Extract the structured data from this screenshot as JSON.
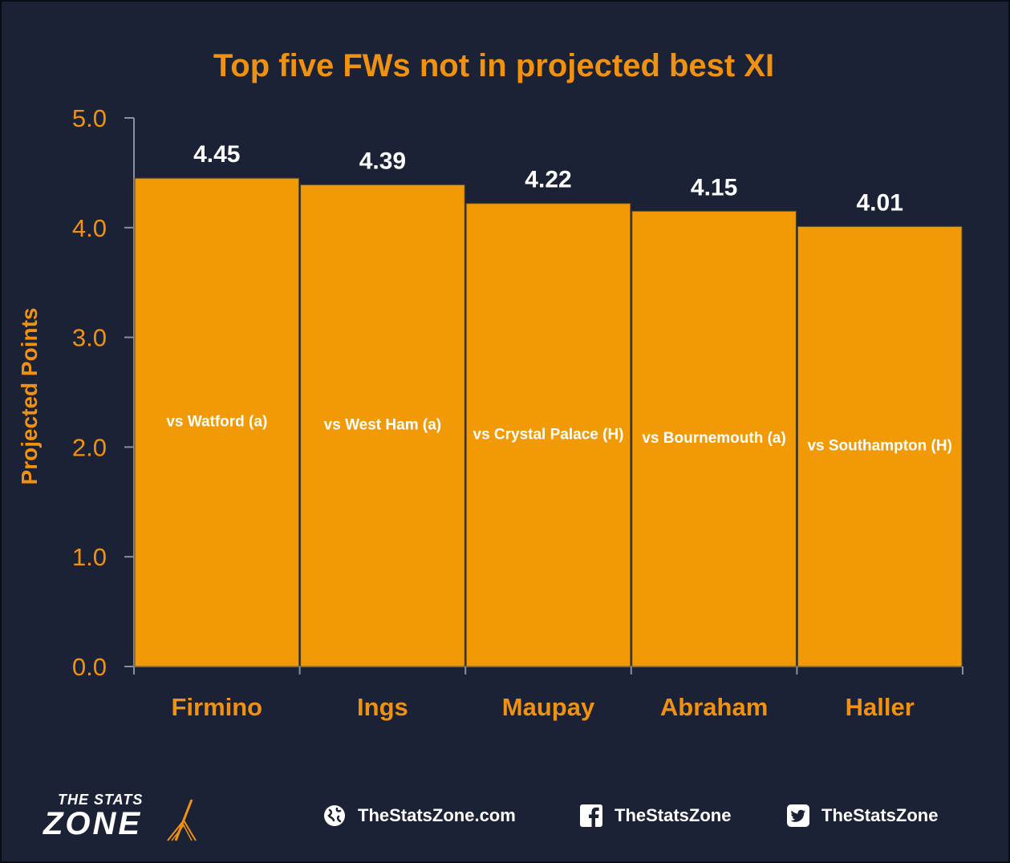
{
  "chart_data": {
    "type": "bar",
    "title": "Top five FWs not in projected best XI",
    "ylabel": "Projected Points",
    "xlabel": "",
    "ylim": [
      0,
      5
    ],
    "yticks": [
      "0.0",
      "1.0",
      "2.0",
      "3.0",
      "4.0",
      "5.0"
    ],
    "categories": [
      "Firmino",
      "Ings",
      "Maupay",
      "Abraham",
      "Haller"
    ],
    "values": [
      4.45,
      4.39,
      4.22,
      4.15,
      4.01
    ],
    "value_labels": [
      "4.45",
      "4.39",
      "4.22",
      "4.15",
      "4.01"
    ],
    "bar_annotations": [
      "vs Watford (a)",
      "vs West Ham (a)",
      "vs Crystal Palace (H)",
      "vs Bournemouth (a)",
      "vs Southampton (H)"
    ],
    "grid": false,
    "legend": "none",
    "colors": {
      "bar": "#f29a06",
      "accent": "#f0920f",
      "background": "#1c2235",
      "label": "#ffffff"
    }
  },
  "footer": {
    "logo_top": "THE STATS",
    "logo_main": "ZONE",
    "website": "TheStatsZone.com",
    "facebook": "TheStatsZone",
    "twitter": "TheStatsZone"
  }
}
